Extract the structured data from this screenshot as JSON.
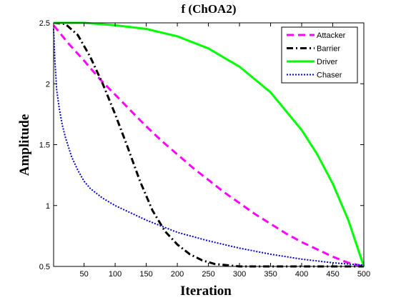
{
  "chart_data": {
    "type": "line",
    "title": "f (ChOA2)",
    "xlabel": "Iteration",
    "ylabel": "Amplitude",
    "xlim": [
      1,
      500
    ],
    "ylim": [
      0.5,
      2.5
    ],
    "xticks": [
      50,
      100,
      150,
      200,
      250,
      300,
      350,
      400,
      450,
      500
    ],
    "yticks": [
      0.5,
      1,
      1.5,
      2,
      2.5
    ],
    "ytick_labels": [
      "0.5",
      "1",
      "1.5",
      "2",
      "2.5"
    ],
    "grid": false,
    "legend_position": "top-right",
    "series": [
      {
        "name": "Attacker",
        "color": "#ff00ff",
        "style": "dashed",
        "x": [
          1,
          25,
          50,
          75,
          100,
          125,
          150,
          175,
          200,
          225,
          250,
          275,
          300,
          325,
          350,
          375,
          400,
          425,
          450,
          475,
          500
        ],
        "y": [
          2.48,
          2.33,
          2.19,
          2.04,
          1.91,
          1.78,
          1.65,
          1.53,
          1.42,
          1.31,
          1.21,
          1.11,
          1.02,
          0.93,
          0.85,
          0.77,
          0.7,
          0.64,
          0.58,
          0.53,
          0.5
        ]
      },
      {
        "name": "Barrier",
        "color": "#000000",
        "style": "dash-dot",
        "x": [
          1,
          20,
          40,
          60,
          80,
          100,
          120,
          140,
          160,
          180,
          200,
          220,
          240,
          260,
          280,
          300,
          350,
          400,
          450,
          500
        ],
        "y": [
          2.5,
          2.49,
          2.4,
          2.22,
          2.0,
          1.75,
          1.48,
          1.2,
          0.96,
          0.79,
          0.68,
          0.6,
          0.55,
          0.52,
          0.51,
          0.5,
          0.5,
          0.5,
          0.5,
          0.5
        ]
      },
      {
        "name": "Driver",
        "color": "#00ff00",
        "style": "solid",
        "x": [
          1,
          50,
          100,
          150,
          200,
          250,
          300,
          350,
          400,
          425,
          450,
          475,
          500
        ],
        "y": [
          2.5,
          2.5,
          2.48,
          2.45,
          2.39,
          2.29,
          2.14,
          1.93,
          1.62,
          1.42,
          1.18,
          0.88,
          0.5
        ]
      },
      {
        "name": "Chaser",
        "color": "#0000cc",
        "style": "dotted",
        "x": [
          1,
          3,
          6,
          10,
          15,
          20,
          30,
          40,
          50,
          60,
          80,
          100,
          150,
          200,
          250,
          300,
          350,
          400,
          450,
          500
        ],
        "y": [
          2.45,
          2.2,
          1.95,
          1.8,
          1.66,
          1.56,
          1.4,
          1.29,
          1.2,
          1.14,
          1.06,
          1.0,
          0.88,
          0.78,
          0.71,
          0.65,
          0.6,
          0.56,
          0.53,
          0.51
        ]
      }
    ]
  }
}
